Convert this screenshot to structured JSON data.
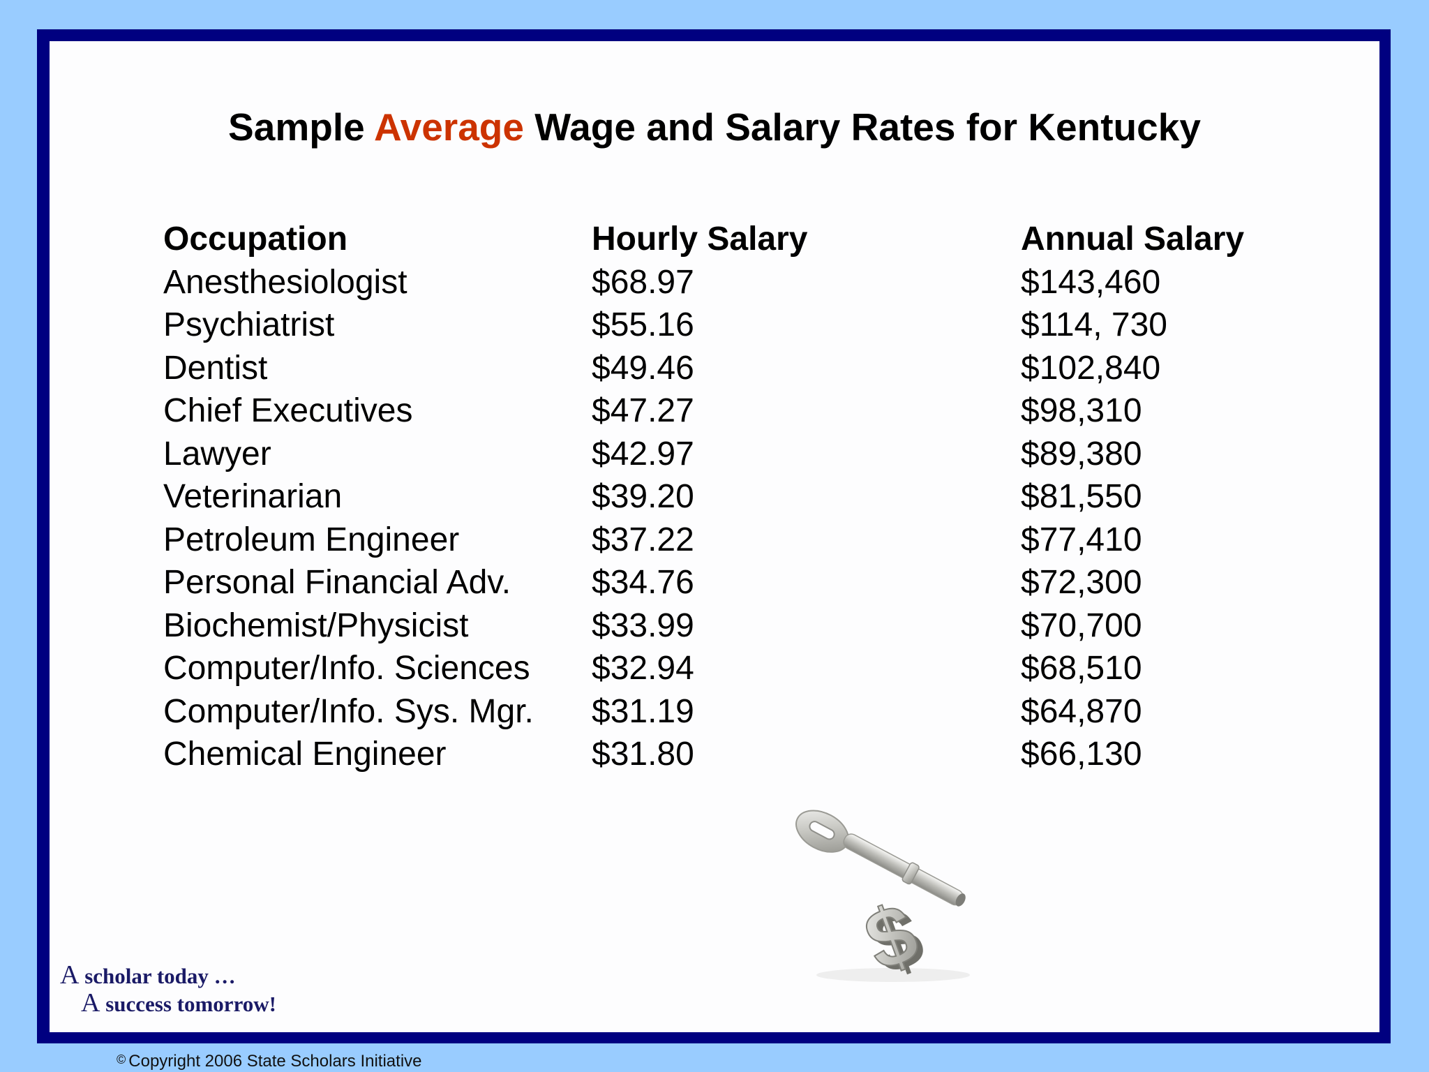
{
  "slide": {
    "title_parts": {
      "before": "Sample ",
      "accent": "Average",
      "after": " Wage and Salary Rates for Kentucky"
    },
    "accent_color": "#cc3300",
    "border_color": "#000080",
    "background_color": "#99ccff"
  },
  "table": {
    "headers": {
      "occupation": "Occupation",
      "hourly": "Hourly Salary",
      "annual": "Annual Salary"
    },
    "rows": [
      {
        "occupation": "Anesthesiologist",
        "hourly": "$68.97",
        "annual": "$143,460"
      },
      {
        "occupation": "Psychiatrist",
        "hourly": "$55.16",
        "annual": "$114, 730"
      },
      {
        "occupation": "Dentist",
        "hourly": "$49.46",
        "annual": "$102,840"
      },
      {
        "occupation": "Chief Executives",
        "hourly": "$47.27",
        "annual": "$98,310"
      },
      {
        "occupation": "Lawyer",
        "hourly": "$42.97",
        "annual": "$89,380"
      },
      {
        "occupation": "Veterinarian",
        "hourly": "$39.20",
        "annual": "$81,550"
      },
      {
        "occupation": "Petroleum Engineer",
        "hourly": "$37.22",
        "annual": "$77,410"
      },
      {
        "occupation": "Personal Financial Adv.",
        "hourly": "$34.76",
        "annual": "$72,300"
      },
      {
        "occupation": "Biochemist/Physicist",
        "hourly": "$33.99",
        "annual": "$70,700"
      },
      {
        "occupation": "Computer/Info. Sciences",
        "hourly": "$32.94",
        "annual": "$68,510"
      },
      {
        "occupation": "Computer/Info. Sys. Mgr.",
        "hourly": "$31.19",
        "annual": "$64,870"
      },
      {
        "occupation": "Chemical Engineer",
        "hourly": "$31.80",
        "annual": "$66,130"
      }
    ]
  },
  "illustration": {
    "icon": "key-with-dollar-sign-icon"
  },
  "tagline": {
    "line1_a": "A",
    "line1_rest": " scholar today …",
    "line2_a": "A",
    "line2_rest": " success tomorrow!"
  },
  "footer": {
    "copyright_symbol": "©",
    "copyright_text": "Copyright 2006 State Scholars Initiative"
  }
}
